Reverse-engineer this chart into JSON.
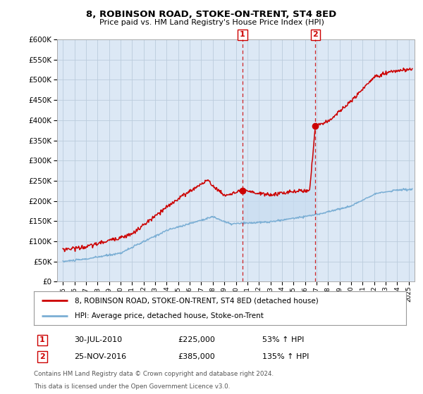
{
  "title": "8, ROBINSON ROAD, STOKE-ON-TRENT, ST4 8ED",
  "subtitle": "Price paid vs. HM Land Registry's House Price Index (HPI)",
  "legend_line1": "8, ROBINSON ROAD, STOKE-ON-TRENT, ST4 8ED (detached house)",
  "legend_line2": "HPI: Average price, detached house, Stoke-on-Trent",
  "footnote1": "Contains HM Land Registry data © Crown copyright and database right 2024.",
  "footnote2": "This data is licensed under the Open Government Licence v3.0.",
  "sale1_date": "30-JUL-2010",
  "sale1_price": 225000,
  "sale1_price_str": "£225,000",
  "sale1_pct": "53% ↑ HPI",
  "sale2_date": "25-NOV-2016",
  "sale2_price": 385000,
  "sale2_price_str": "£385,000",
  "sale2_pct": "135% ↑ HPI",
  "background_color": "#ffffff",
  "chart_bg_color": "#dce8f5",
  "red_color": "#cc0000",
  "blue_color": "#7aaed4",
  "shade_color": "#c8dcf0",
  "grid_color": "#bbccdd",
  "ylim": [
    0,
    600000
  ],
  "ytick_vals": [
    0,
    50000,
    100000,
    150000,
    200000,
    250000,
    300000,
    350000,
    400000,
    450000,
    500000,
    550000,
    600000
  ],
  "sale1_x": 2010.58,
  "sale2_x": 2016.9,
  "xmin": 1994.5,
  "xmax": 2025.5
}
